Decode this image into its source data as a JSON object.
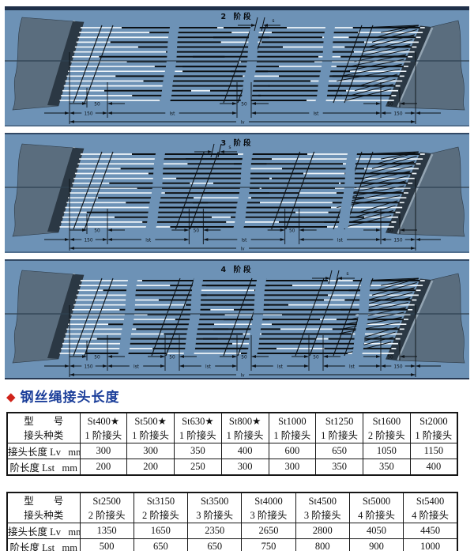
{
  "heading": {
    "bullet": "◆",
    "title": "钢丝绳接头长度"
  },
  "colors": {
    "heading_bullet": "#d0231a",
    "heading_text": "#1c3f9a",
    "panel_bg": "#6d92b6",
    "edge_dark": "#1f3049",
    "belt_body": "#5a6d7e",
    "belt_band": "#2b3844",
    "belt_light": "#93a4b2",
    "midline": "#2f4151",
    "rope_white": "#eff5f9",
    "rope_black": "#0b1014",
    "dim": "#0c1116",
    "title": "#0a0e12"
  },
  "diagrams": {
    "dim_labels": {
      "end": "150",
      "fifty": "50",
      "lst": "lst",
      "lv": "lv",
      "s": "s"
    },
    "panels": [
      {
        "title": "2 阶段",
        "stages": 2
      },
      {
        "title": "3 阶段",
        "stages": 3
      },
      {
        "title": "4 阶段",
        "stages": 4
      }
    ]
  },
  "tables": [
    {
      "corner": {
        "line1": "型　　号",
        "line2": "接头种类"
      },
      "columns": [
        {
          "model": "St400★",
          "joint": "1 阶接头"
        },
        {
          "model": "St500★",
          "joint": "1 阶接头"
        },
        {
          "model": "St630★",
          "joint": "1 阶接头"
        },
        {
          "model": "St800★",
          "joint": "1 阶接头"
        },
        {
          "model": "St1000",
          "joint": "1 阶接头"
        },
        {
          "model": "St1250",
          "joint": "1 阶接头"
        },
        {
          "model": "St1600",
          "joint": "2 阶接头"
        },
        {
          "model": "St2000",
          "joint": "1 阶接头"
        }
      ],
      "rows": [
        {
          "label": "接头长度 Lv   mm",
          "values": [
            "300",
            "300",
            "350",
            "400",
            "600",
            "650",
            "1050",
            "1150"
          ]
        },
        {
          "label": "阶长度 Lst   mm",
          "values": [
            "200",
            "200",
            "250",
            "300",
            "300",
            "350",
            "350",
            "400"
          ]
        }
      ]
    },
    {
      "corner": {
        "line1": "型　　号",
        "line2": "接头种类"
      },
      "columns": [
        {
          "model": "St2500",
          "joint": "2 阶接头"
        },
        {
          "model": "St3150",
          "joint": "2 阶接头"
        },
        {
          "model": "St3500",
          "joint": "3 阶接头"
        },
        {
          "model": "St4000",
          "joint": "3 阶接头"
        },
        {
          "model": "St4500",
          "joint": "3 阶接头"
        },
        {
          "model": "St5000",
          "joint": "4 阶接头"
        },
        {
          "model": "St5400",
          "joint": "4 阶接头"
        }
      ],
      "rows": [
        {
          "label": "接头长度 Lv   mm",
          "values": [
            "1350",
            "1650",
            "2350",
            "2650",
            "2800",
            "4050",
            "4450"
          ]
        },
        {
          "label": "阶长度 Lst   mm",
          "values": [
            "500",
            "650",
            "650",
            "750",
            "800",
            "900",
            "1000"
          ]
        }
      ]
    }
  ]
}
